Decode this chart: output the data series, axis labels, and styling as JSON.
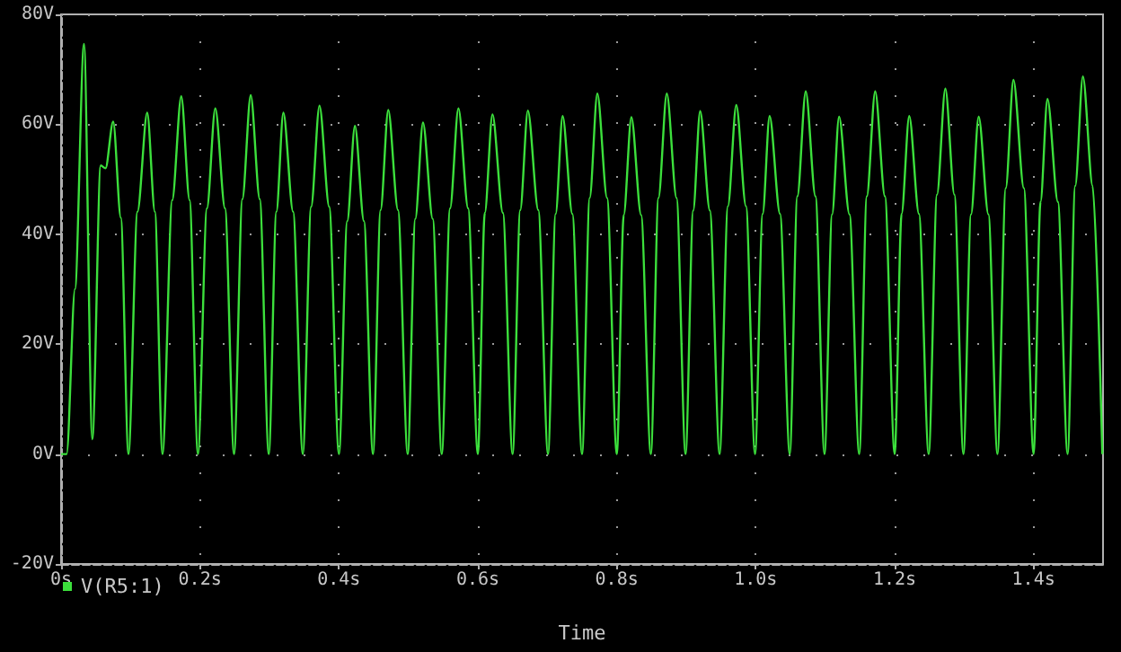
{
  "chart_data": {
    "type": "line",
    "xlabel": "Time",
    "xlim": [
      0,
      1.5
    ],
    "ylim": [
      -20,
      80
    ],
    "xticks": [
      {
        "value": 0,
        "label": "0s"
      },
      {
        "value": 0.2,
        "label": "0.2s"
      },
      {
        "value": 0.4,
        "label": "0.4s"
      },
      {
        "value": 0.6,
        "label": "0.6s"
      },
      {
        "value": 0.8,
        "label": "0.8s"
      },
      {
        "value": 1.0,
        "label": "1.0s"
      },
      {
        "value": 1.2,
        "label": "1.2s"
      },
      {
        "value": 1.4,
        "label": "1.4s"
      }
    ],
    "yticks": [
      {
        "value": -20,
        "label": "-20V"
      },
      {
        "value": 0,
        "label": "0V"
      },
      {
        "value": 20,
        "label": "20V"
      },
      {
        "value": 40,
        "label": "40V"
      },
      {
        "value": 60,
        "label": "60V"
      },
      {
        "value": 80,
        "label": "80V"
      }
    ],
    "grid": "dotted",
    "legend": "bottom left",
    "marker": "none",
    "line_style": "solid",
    "series": [
      {
        "name": "V(R5:1)",
        "color": "#3ce03c",
        "x": [
          0,
          0.008,
          0.02,
          0.033,
          0.045,
          0.057,
          0.064,
          0.075,
          0.086,
          0.097,
          0.11,
          0.124,
          0.135,
          0.146,
          0.16,
          0.173,
          0.185,
          0.197,
          0.21,
          0.222,
          0.236,
          0.249,
          0.261,
          0.273,
          0.286,
          0.299,
          0.31,
          0.32,
          0.334,
          0.348,
          0.36,
          0.372,
          0.386,
          0.4,
          0.412,
          0.423,
          0.436,
          0.449,
          0.46,
          0.471,
          0.485,
          0.499,
          0.51,
          0.521,
          0.535,
          0.548,
          0.56,
          0.572,
          0.586,
          0.6,
          0.61,
          0.621,
          0.636,
          0.65,
          0.661,
          0.672,
          0.687,
          0.701,
          0.712,
          0.722,
          0.736,
          0.75,
          0.761,
          0.772,
          0.786,
          0.8,
          0.81,
          0.821,
          0.835,
          0.849,
          0.86,
          0.872,
          0.886,
          0.899,
          0.91,
          0.92,
          0.934,
          0.948,
          0.96,
          0.972,
          0.986,
          0.999,
          1.01,
          1.02,
          1.035,
          1.049,
          1.06,
          1.072,
          1.086,
          1.099,
          1.11,
          1.12,
          1.135,
          1.149,
          1.16,
          1.172,
          1.186,
          1.2,
          1.21,
          1.221,
          1.235,
          1.249,
          1.261,
          1.273,
          1.286,
          1.299,
          1.31,
          1.321,
          1.335,
          1.348,
          1.36,
          1.371,
          1.386,
          1.4,
          1.41,
          1.42,
          1.435,
          1.449,
          1.46,
          1.471,
          1.485,
          1.499
        ],
        "values": [
          0,
          0,
          30,
          74.6,
          2.7,
          52.5,
          52,
          60.5,
          43,
          0,
          44.1,
          62.1,
          44.1,
          0,
          46.2,
          65.1,
          46.2,
          0,
          44.7,
          62.9,
          44.7,
          0,
          46.4,
          65.3,
          46.4,
          0,
          44.1,
          62.1,
          44.1,
          0,
          45,
          63.4,
          45,
          0,
          42.4,
          59.7,
          42.4,
          0,
          44.4,
          62.6,
          44.4,
          0,
          42.8,
          60.3,
          42.8,
          0,
          44.7,
          62.9,
          44.7,
          0,
          43.9,
          61.8,
          43.9,
          0,
          44.4,
          62.5,
          44.4,
          0,
          43.7,
          61.5,
          43.7,
          0,
          46.6,
          65.6,
          46.6,
          0,
          43.5,
          61.3,
          43.5,
          0,
          46.6,
          65.6,
          46.6,
          0,
          44.3,
          62.4,
          44.3,
          0,
          45.1,
          63.5,
          45.1,
          0,
          43.7,
          61.5,
          43.7,
          0,
          46.9,
          66,
          46.9,
          0,
          43.6,
          61.4,
          43.6,
          0,
          46.9,
          66,
          46.9,
          0,
          43.7,
          61.5,
          43.7,
          0,
          47.2,
          66.5,
          47.2,
          0,
          43.6,
          61.4,
          43.6,
          0,
          48.4,
          68.1,
          48.4,
          0,
          45.9,
          64.6,
          45.9,
          0,
          48.8,
          68.7,
          48.8,
          0
        ]
      }
    ]
  }
}
